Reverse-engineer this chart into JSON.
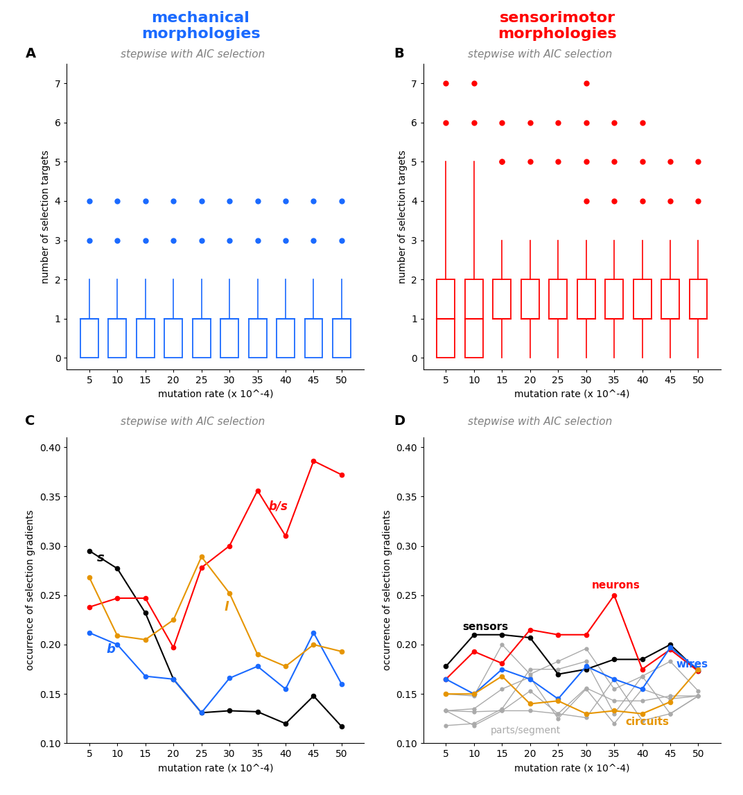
{
  "title_left": "mechanical\nmorphologies",
  "title_right": "sensorimotor\nmorphologies",
  "title_left_color": "#1a6aff",
  "title_right_color": "#ff0000",
  "panel_subtitle": "stepwise with AIC selection",
  "x_ticks": [
    5,
    10,
    15,
    20,
    25,
    30,
    35,
    40,
    45,
    50
  ],
  "x_label": "mutation rate (x 10^-4)",
  "boxplot_A": {
    "positions": [
      5,
      10,
      15,
      20,
      25,
      30,
      35,
      40,
      45,
      50
    ],
    "q1": [
      0,
      0,
      0,
      0,
      0,
      0,
      0,
      0,
      0,
      0
    ],
    "median": [
      1,
      1,
      1,
      1,
      1,
      1,
      1,
      1,
      1,
      1
    ],
    "q3": [
      1,
      1,
      1,
      1,
      1,
      1,
      1,
      1,
      1,
      1
    ],
    "whisker_low": [
      0,
      0,
      0,
      0,
      0,
      0,
      0,
      0,
      0,
      0
    ],
    "whisker_high": [
      2,
      2,
      2,
      2,
      2,
      2,
      2,
      2,
      2,
      2
    ],
    "outliers_y": [
      3,
      4,
      3,
      4,
      3,
      4,
      3,
      4,
      3,
      4,
      3,
      4,
      3,
      4,
      3,
      4,
      3,
      4,
      3,
      4
    ],
    "outliers_x": [
      5,
      5,
      10,
      10,
      15,
      15,
      20,
      20,
      25,
      25,
      30,
      30,
      35,
      35,
      40,
      40,
      45,
      45,
      50,
      50
    ],
    "color": "#1a6aff",
    "ylabel": "number of selection targets",
    "ylim": [
      -0.3,
      7.5
    ],
    "yticks": [
      0,
      1,
      2,
      3,
      4,
      5,
      6,
      7
    ]
  },
  "boxplot_B": {
    "positions": [
      5,
      10,
      15,
      20,
      25,
      30,
      35,
      40,
      45,
      50
    ],
    "q1": [
      0,
      0,
      1,
      1,
      1,
      1,
      1,
      1,
      1,
      1
    ],
    "median": [
      1,
      1,
      1,
      1,
      1,
      1,
      1,
      1,
      1,
      1
    ],
    "q3": [
      2,
      2,
      2,
      2,
      2,
      2,
      2,
      2,
      2,
      2
    ],
    "whisker_low": [
      0,
      0,
      0,
      0,
      0,
      0,
      0,
      0,
      0,
      0
    ],
    "whisker_high": [
      5,
      5,
      3,
      3,
      3,
      3,
      3,
      3,
      3,
      3
    ],
    "outliers_y": [
      6,
      7,
      6,
      7,
      5,
      6,
      5,
      6,
      5,
      6,
      4,
      5,
      6,
      4,
      5,
      6,
      7,
      4,
      5,
      6,
      4,
      5,
      4,
      5,
      5
    ],
    "outliers_x": [
      5,
      5,
      10,
      10,
      15,
      15,
      20,
      20,
      25,
      25,
      30,
      30,
      30,
      35,
      35,
      35,
      30,
      40,
      40,
      40,
      45,
      45,
      50,
      50,
      15
    ],
    "color": "#ff0000",
    "ylabel": "number of selection targets",
    "ylim": [
      -0.3,
      7.5
    ],
    "yticks": [
      0,
      1,
      2,
      3,
      4,
      5,
      6,
      7
    ]
  },
  "line_C": {
    "x": [
      5,
      10,
      15,
      20,
      25,
      30,
      35,
      40,
      45,
      50
    ],
    "s": [
      0.295,
      0.277,
      0.232,
      0.165,
      0.131,
      0.133,
      0.132,
      0.12,
      0.148,
      0.117
    ],
    "b": [
      0.212,
      0.2,
      0.168,
      0.165,
      0.131,
      0.166,
      0.178,
      0.155,
      0.212,
      0.16
    ],
    "b_s": [
      0.238,
      0.247,
      0.247,
      0.197,
      0.278,
      0.3,
      0.356,
      0.31,
      0.386,
      0.372
    ],
    "l": [
      0.268,
      0.209,
      0.205,
      0.225,
      0.289,
      0.252,
      0.19,
      0.178,
      0.2,
      0.193
    ],
    "ylabel": "occurrence of selection gradients",
    "ylim": [
      0.1,
      0.41
    ],
    "yticks": [
      0.1,
      0.15,
      0.2,
      0.25,
      0.3,
      0.35,
      0.4
    ],
    "s_color": "#000000",
    "b_color": "#1a6aff",
    "bs_color": "#ff0000",
    "l_color": "#e69500"
  },
  "line_D": {
    "x": [
      5,
      10,
      15,
      20,
      25,
      30,
      35,
      40,
      45,
      50
    ],
    "sensors": [
      0.178,
      0.21,
      0.21,
      0.207,
      0.17,
      0.175,
      0.185,
      0.185,
      0.2,
      0.173
    ],
    "neurons": [
      0.165,
      0.193,
      0.181,
      0.215,
      0.21,
      0.21,
      0.25,
      0.175,
      0.195,
      0.173
    ],
    "wires": [
      0.165,
      0.15,
      0.175,
      0.165,
      0.145,
      0.178,
      0.165,
      0.155,
      0.197,
      0.175
    ],
    "circuits": [
      0.15,
      0.15,
      0.168,
      0.14,
      0.143,
      0.13,
      0.133,
      0.13,
      0.142,
      0.175
    ],
    "parts1": [
      0.133,
      0.132,
      0.133,
      0.133,
      0.13,
      0.126,
      0.165,
      0.123,
      0.13,
      0.148
    ],
    "parts2": [
      0.118,
      0.12,
      0.135,
      0.175,
      0.175,
      0.183,
      0.13,
      0.168,
      0.13,
      0.148
    ],
    "parts3": [
      0.15,
      0.148,
      0.2,
      0.17,
      0.183,
      0.196,
      0.155,
      0.168,
      0.183,
      0.153
    ],
    "parts4": [
      0.133,
      0.135,
      0.155,
      0.167,
      0.125,
      0.155,
      0.12,
      0.155,
      0.145,
      0.148
    ],
    "parts5": [
      0.133,
      0.118,
      0.133,
      0.153,
      0.13,
      0.156,
      0.143,
      0.143,
      0.148,
      0.148
    ],
    "ylabel": "occurrence of selection gradients",
    "ylim": [
      0.1,
      0.41
    ],
    "yticks": [
      0.1,
      0.15,
      0.2,
      0.25,
      0.3,
      0.35,
      0.4
    ],
    "sensors_color": "#000000",
    "neurons_color": "#ff0000",
    "wires_color": "#1a6aff",
    "circuits_color": "#e69500",
    "parts_color": "#aaaaaa"
  }
}
